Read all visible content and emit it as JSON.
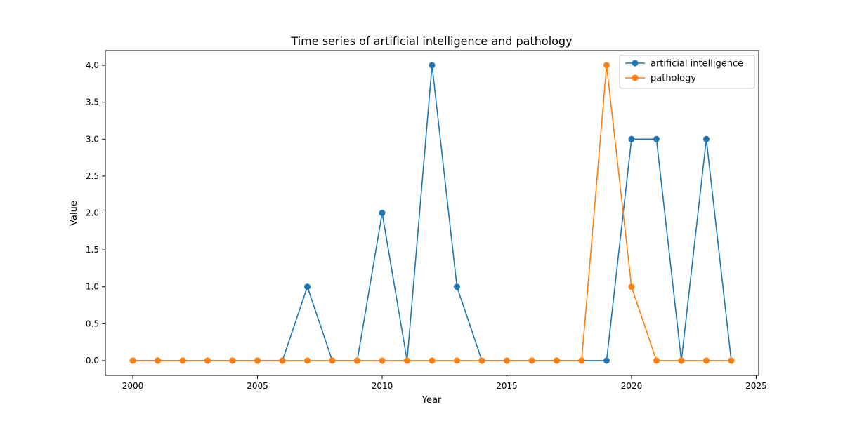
{
  "chart_data": {
    "type": "line",
    "title": "Time series of artificial intelligence and pathology",
    "xlabel": "Year",
    "ylabel": "Value",
    "xlim": [
      1998.9,
      2025.1
    ],
    "ylim": [
      -0.2,
      4.2
    ],
    "x_ticks": [
      2000,
      2005,
      2010,
      2015,
      2020,
      2025
    ],
    "x_tick_labels": [
      "2000",
      "2005",
      "2010",
      "2015",
      "2020",
      "2025"
    ],
    "y_ticks": [
      0.0,
      0.5,
      1.0,
      1.5,
      2.0,
      2.5,
      3.0,
      3.5,
      4.0
    ],
    "y_tick_labels": [
      "0.0",
      "0.5",
      "1.0",
      "1.5",
      "2.0",
      "2.5",
      "3.0",
      "3.5",
      "4.0"
    ],
    "grid": false,
    "legend_position": "top-right",
    "x": [
      2000,
      2001,
      2002,
      2003,
      2004,
      2005,
      2006,
      2007,
      2008,
      2009,
      2010,
      2011,
      2012,
      2013,
      2014,
      2015,
      2016,
      2017,
      2018,
      2019,
      2020,
      2021,
      2022,
      2023,
      2024
    ],
    "series": [
      {
        "name": "artificial intelligence",
        "color": "#1f77b4",
        "values": [
          0,
          0,
          0,
          0,
          0,
          0,
          0,
          1,
          0,
          0,
          2,
          0,
          4,
          1,
          0,
          0,
          0,
          0,
          0,
          0,
          3,
          3,
          0,
          3,
          0
        ]
      },
      {
        "name": "pathology",
        "color": "#ff7f0e",
        "values": [
          0,
          0,
          0,
          0,
          0,
          0,
          0,
          0,
          0,
          0,
          0,
          0,
          0,
          0,
          0,
          0,
          0,
          0,
          0,
          4,
          1,
          0,
          0,
          0,
          0
        ]
      }
    ]
  }
}
